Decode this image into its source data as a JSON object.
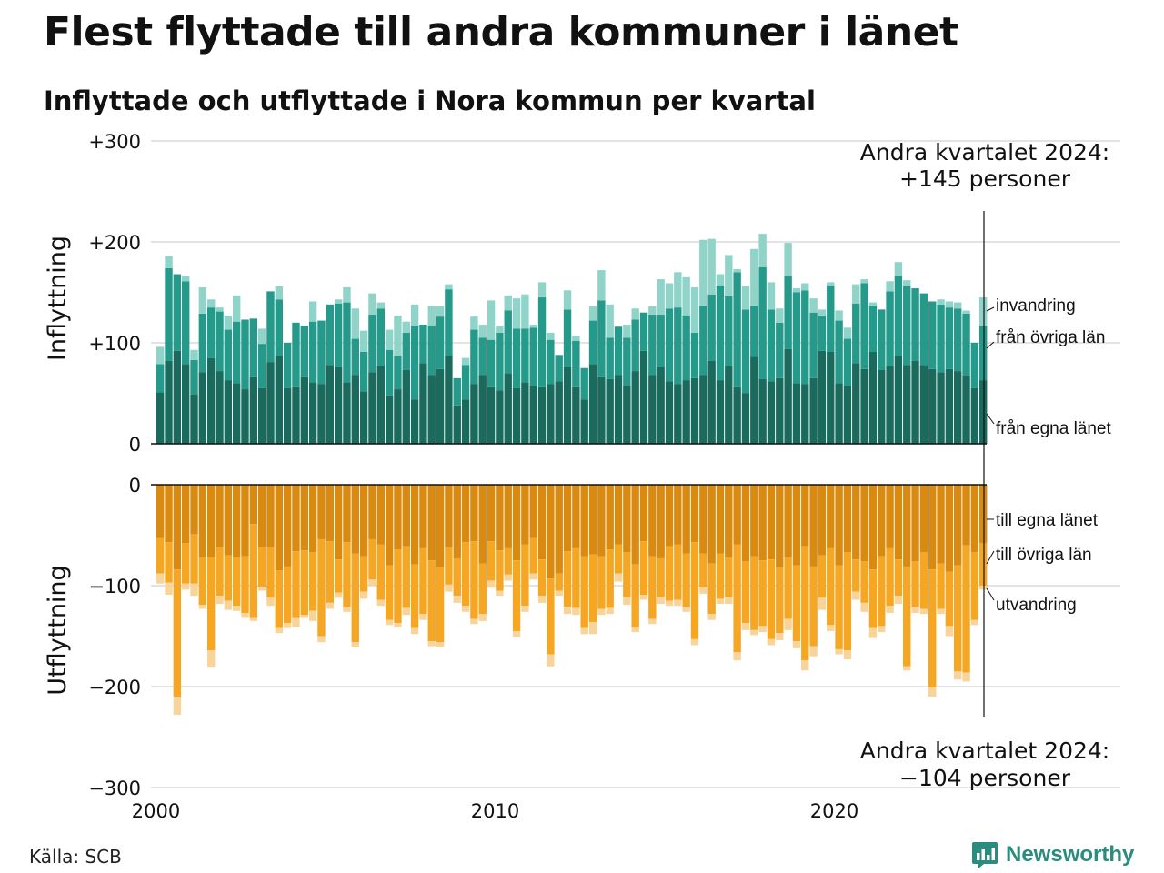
{
  "title": "Flest flyttade till andra kommuner i länet",
  "subtitle": "Inflyttade och utflyttade i Nora kommun per kvartal",
  "source": "Källa: SCB",
  "brand": "Newsworthy",
  "colors": {
    "in_own_county": "#1a6b5e",
    "in_other_counties": "#25998a",
    "in_immigration": "#8fd3c9",
    "out_own_county": "#d98a10",
    "out_other_counties": "#f5a623",
    "out_emigration": "#f9d49a",
    "brand": "#2a8c7e"
  },
  "chart_data": {
    "type": "bar",
    "stacked": true,
    "x_ticks": [
      "2000",
      "2010",
      "2020"
    ],
    "x_range": [
      "2000 Q1",
      "2024 Q2"
    ],
    "panels": [
      {
        "ylabel": "Inflyttning",
        "ylim": [
          0,
          300
        ],
        "ticks": [
          "0",
          "+100",
          "+200",
          "+300"
        ],
        "tick_values": [
          0,
          100,
          200,
          300
        ],
        "series": [
          {
            "name": "från egna länet",
            "values": [
              51,
              82,
              92,
              79,
              49,
              71,
              85,
              72,
              63,
              60,
              54,
              66,
              55,
              81,
              87,
              55,
              56,
              66,
              61,
              59,
              78,
              76,
              61,
              68,
              52,
              71,
              77,
              48,
              54,
              73,
              44,
              80,
              68,
              74,
              87,
              38,
              44,
              59,
              68,
              56,
              53,
              70,
              55,
              61,
              57,
              56,
              59,
              62,
              76,
              56,
              44,
              79,
              66,
              64,
              68,
              58,
              72,
              92,
              68,
              76,
              62,
              59,
              63,
              65,
              68,
              82,
              63,
              77,
              56,
              50,
              86,
              64,
              62,
              65,
              94,
              60,
              59,
              65,
              92,
              91,
              60,
              57,
              80,
              74,
              91,
              73,
              77,
              87,
              78,
              82,
              78,
              74,
              71,
              74,
              72,
              67,
              55,
              63
            ]
          },
          {
            "name": "från övriga län",
            "values": [
              28,
              92,
              76,
              82,
              34,
              58,
              50,
              59,
              50,
              61,
              69,
              58,
              44,
              70,
              56,
              45,
              64,
              51,
              60,
              63,
              60,
              63,
              79,
              36,
              39,
              57,
              57,
              45,
              33,
              37,
              73,
              38,
              49,
              52,
              66,
              27,
              34,
              54,
              37,
              47,
              57,
              62,
              59,
              53,
              58,
              89,
              44,
              26,
              57,
              46,
              31,
              43,
              76,
              41,
              48,
              47,
              51,
              38,
              60,
              52,
              72,
              76,
              64,
              45,
              69,
              66,
              94,
              69,
              114,
              83,
              51,
              111,
              71,
              55,
              72,
              90,
              93,
              65,
              35,
              66,
              62,
              47,
              59,
              85,
              46,
              60,
              74,
              79,
              78,
              72,
              71,
              67,
              67,
              61,
              62,
              62,
              45,
              54
            ]
          },
          {
            "name": "invandring",
            "values": [
              17,
              12,
              0,
              5,
              10,
              26,
              8,
              4,
              14,
              26,
              0,
              0,
              15,
              0,
              13,
              0,
              0,
              0,
              20,
              0,
              0,
              4,
              15,
              30,
              21,
              21,
              6,
              20,
              40,
              11,
              21,
              0,
              20,
              10,
              5,
              0,
              7,
              13,
              13,
              39,
              7,
              15,
              30,
              34,
              3,
              15,
              7,
              0,
              19,
              5,
              0,
              14,
              30,
              33,
              0,
              13,
              11,
              0,
              8,
              35,
              25,
              35,
              38,
              45,
              65,
              55,
              11,
              41,
              3,
              23,
              56,
              33,
              27,
              14,
              33,
              4,
              7,
              14,
              6,
              3,
              10,
              11,
              19,
              4,
              3,
              0,
              10,
              14,
              6,
              0,
              0,
              0,
              5,
              6,
              6,
              3,
              0,
              28
            ]
          }
        ]
      },
      {
        "ylabel": "Utflyttning",
        "ylim": [
          -300,
          0
        ],
        "ticks": [
          "0",
          "−100",
          "−200",
          "−300"
        ],
        "tick_values": [
          0,
          -100,
          -200,
          -300
        ],
        "series": [
          {
            "name": "till egna länet",
            "values": [
              -53,
              -57,
              -84,
              -58,
              -49,
              -72,
              -72,
              -62,
              -70,
              -72,
              -71,
              -39,
              -62,
              -62,
              -85,
              -81,
              -66,
              -65,
              -67,
              -54,
              -56,
              -74,
              -57,
              -68,
              -71,
              -54,
              -59,
              -80,
              -64,
              -61,
              -79,
              -63,
              -75,
              -82,
              -62,
              -73,
              -57,
              -56,
              -78,
              -56,
              -65,
              -63,
              -75,
              -59,
              -53,
              -74,
              -93,
              -88,
              -66,
              -63,
              -71,
              -69,
              -71,
              -64,
              -59,
              -67,
              -79,
              -56,
              -71,
              -73,
              -61,
              -59,
              -68,
              -57,
              -68,
              -78,
              -68,
              -72,
              -59,
              -76,
              -71,
              -75,
              -74,
              -82,
              -72,
              -80,
              -61,
              -81,
              -70,
              -63,
              -80,
              -67,
              -74,
              -76,
              -84,
              -71,
              -63,
              -74,
              -81,
              -76,
              -67,
              -84,
              -78,
              -86,
              -80,
              -60,
              -67,
              -58
            ]
          },
          {
            "name": "till övriga län",
            "values": [
              -35,
              -40,
              -126,
              -40,
              -49,
              -47,
              -92,
              -48,
              -45,
              -48,
              -56,
              -93,
              -39,
              -50,
              -57,
              -56,
              -66,
              -64,
              -58,
              -96,
              -61,
              -33,
              -64,
              -88,
              -35,
              -40,
              -55,
              -54,
              -73,
              -61,
              -63,
              -65,
              -80,
              -74,
              -37,
              -37,
              -63,
              -77,
              -50,
              -39,
              -40,
              -26,
              -70,
              -61,
              -35,
              -36,
              -75,
              -17,
              -55,
              -59,
              -71,
              -67,
              -52,
              -58,
              -29,
              -44,
              -62,
              -53,
              -62,
              -38,
              -54,
              -55,
              -53,
              -96,
              -34,
              -50,
              -45,
              -39,
              -107,
              -61,
              -73,
              -65,
              -79,
              -65,
              -61,
              -75,
              -113,
              -79,
              -42,
              -76,
              -83,
              -97,
              -32,
              -41,
              -58,
              -69,
              -57,
              -36,
              -99,
              -45,
              -56,
              -117,
              -45,
              -54,
              -105,
              -126,
              -67,
              -42
            ]
          },
          {
            "name": "utvandring",
            "values": [
              -10,
              -12,
              -18,
              -6,
              -12,
              -4,
              -17,
              -8,
              -9,
              -5,
              -5,
              -3,
              -4,
              -8,
              -5,
              -5,
              -9,
              -3,
              -10,
              -6,
              -6,
              -5,
              -5,
              -5,
              -7,
              -6,
              -6,
              -5,
              -4,
              -7,
              -6,
              -6,
              -5,
              -5,
              -7,
              -7,
              -6,
              -5,
              -7,
              -7,
              -5,
              -6,
              -6,
              -6,
              -6,
              -7,
              -12,
              -5,
              -7,
              -7,
              -6,
              -12,
              -6,
              -6,
              -8,
              -8,
              -5,
              -5,
              -5,
              -7,
              -5,
              -6,
              -5,
              -6,
              -6,
              -6,
              -5,
              -7,
              -8,
              -7,
              -5,
              -6,
              -6,
              -7,
              -11,
              -7,
              -10,
              -10,
              -12,
              -6,
              -5,
              -9,
              -8,
              -9,
              -10,
              -6,
              -7,
              -8,
              -4,
              -6,
              -5,
              -9,
              -5,
              -10,
              -8,
              -9,
              -5,
              -4
            ]
          }
        ]
      }
    ],
    "series_labels_in": [
      "invandring",
      "från övriga län",
      "från egna länet"
    ],
    "series_labels_out": [
      "till egna länet",
      "till övriga län",
      "utvandring"
    ],
    "annotations": [
      {
        "line1": "Andra kvartalet 2024:",
        "line2": "+145 personer"
      },
      {
        "line1": "Andra kvartalet 2024:",
        "line2": "−104 personer"
      }
    ],
    "grid": true
  }
}
